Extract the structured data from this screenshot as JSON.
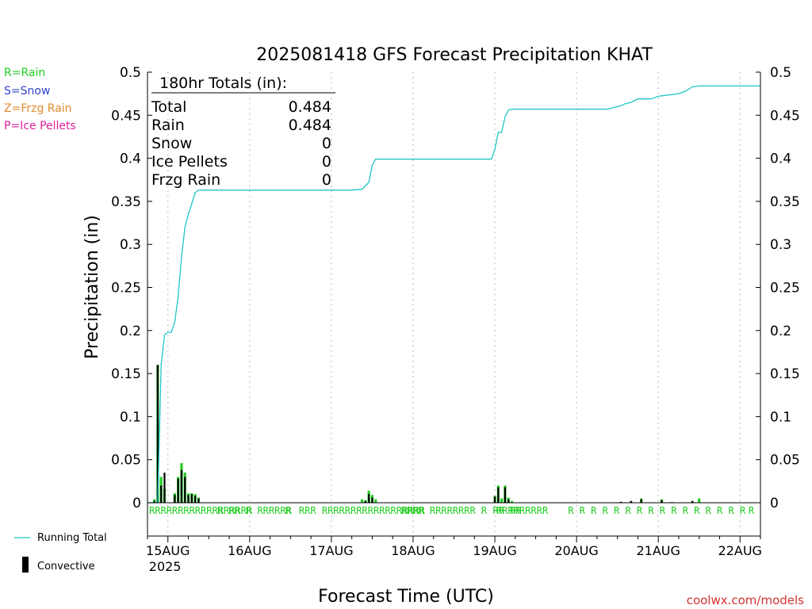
{
  "title": "2025081418 GFS Forecast Precipitation KHAT",
  "ylabel": "Precipitation (in)",
  "xlabel": "Forecast Time (UTC)",
  "credit": "coolwx.com/models",
  "legend_left": [
    {
      "label": "R=Rain",
      "color": "#22cc22"
    },
    {
      "label": "S=Snow",
      "color": "#3344cc"
    },
    {
      "label": "Z=Frzg Rain",
      "color": "#e08a2e"
    },
    {
      "label": "P=Ice Pellets",
      "color": "#e0209a"
    }
  ],
  "legend_bottom": {
    "running_total": "Running Total",
    "convective": "Convective"
  },
  "totals": {
    "header": "180hr Totals (in):",
    "rows": [
      {
        "label": "Total",
        "value": "0.484"
      },
      {
        "label": "Rain",
        "value": "0.484"
      },
      {
        "label": "Snow",
        "value": "0"
      },
      {
        "label": "Ice Pellets",
        "value": "0"
      },
      {
        "label": "Frzg Rain",
        "value": "0"
      }
    ]
  },
  "chart_data": {
    "type": "bar",
    "title": "2025081418 GFS Forecast Precipitation KHAT",
    "xlabel": "Forecast Time (UTC)",
    "ylabel": "Precipitation (in)",
    "ylim": [
      0,
      0.5
    ],
    "yticks": [
      0,
      0.05,
      0.1,
      0.15,
      0.2,
      0.25,
      0.3,
      0.35,
      0.4,
      0.45,
      0.5
    ],
    "ytick_labels": [
      "0",
      "0.05",
      "0.1",
      "0.15",
      "0.2",
      "0.25",
      "0.3",
      "0.35",
      "0.4",
      "0.45",
      "0.5"
    ],
    "x_axis": {
      "unit": "forecast hour",
      "range_hours": [
        0,
        180
      ],
      "grid": "dotted vertical at 00Z"
    },
    "date_ticks": [
      {
        "label": "15AUG",
        "sub": "2025",
        "hour": 6
      },
      {
        "label": "16AUG",
        "hour": 30
      },
      {
        "label": "17AUG",
        "hour": 54
      },
      {
        "label": "18AUG",
        "hour": 78
      },
      {
        "label": "19AUG",
        "hour": 102
      },
      {
        "label": "20AUG",
        "hour": 126
      },
      {
        "label": "21AUG",
        "hour": 150
      },
      {
        "label": "22AUG",
        "hour": 174
      }
    ],
    "series": [
      {
        "name": "Running Total",
        "type": "line",
        "color": "#1fc6c6",
        "points": [
          [
            0,
            0
          ],
          [
            1,
            0
          ],
          [
            2,
            0
          ],
          [
            3,
            0
          ],
          [
            4,
            0.16
          ],
          [
            5,
            0.195
          ],
          [
            6,
            0.198
          ],
          [
            7,
            0.198
          ],
          [
            8,
            0.21
          ],
          [
            9,
            0.24
          ],
          [
            10,
            0.285
          ],
          [
            11,
            0.32
          ],
          [
            12,
            0.335
          ],
          [
            13,
            0.347
          ],
          [
            14,
            0.36
          ],
          [
            15,
            0.363
          ],
          [
            30,
            0.363
          ],
          [
            60,
            0.363
          ],
          [
            63,
            0.364
          ],
          [
            65,
            0.372
          ],
          [
            66,
            0.392
          ],
          [
            67,
            0.399
          ],
          [
            90,
            0.399
          ],
          [
            101,
            0.399
          ],
          [
            102,
            0.41
          ],
          [
            103,
            0.43
          ],
          [
            104,
            0.43
          ],
          [
            105,
            0.448
          ],
          [
            106,
            0.456
          ],
          [
            107,
            0.457
          ],
          [
            135,
            0.457
          ],
          [
            137,
            0.459
          ],
          [
            139,
            0.461
          ],
          [
            140,
            0.463
          ],
          [
            142,
            0.465
          ],
          [
            144,
            0.469
          ],
          [
            148,
            0.469
          ],
          [
            150,
            0.472
          ],
          [
            152,
            0.473
          ],
          [
            154,
            0.474
          ],
          [
            156,
            0.475
          ],
          [
            158,
            0.478
          ],
          [
            160,
            0.483
          ],
          [
            162,
            0.484
          ],
          [
            180,
            0.484
          ]
        ]
      },
      {
        "name": "Precipitation",
        "type": "bar",
        "color": "#22cc22",
        "points": [
          [
            2,
            0.004
          ],
          [
            3,
            0.16
          ],
          [
            4,
            0.03
          ],
          [
            5,
            0.016
          ],
          [
            8,
            0.011
          ],
          [
            9,
            0.03
          ],
          [
            10,
            0.046
          ],
          [
            11,
            0.035
          ],
          [
            12,
            0.011
          ],
          [
            13,
            0.011
          ],
          [
            14,
            0.01
          ],
          [
            15,
            0.006
          ],
          [
            63,
            0.004
          ],
          [
            64,
            0.003
          ],
          [
            65,
            0.014
          ],
          [
            66,
            0.009
          ],
          [
            67,
            0.004
          ],
          [
            102,
            0.008
          ],
          [
            103,
            0.02
          ],
          [
            104,
            0.005
          ],
          [
            105,
            0.02
          ],
          [
            106,
            0.006
          ],
          [
            107,
            0.002
          ],
          [
            139,
            0.001
          ],
          [
            142,
            0.002
          ],
          [
            145,
            0.005
          ],
          [
            151,
            0.004
          ],
          [
            154,
            0.001
          ],
          [
            160,
            0.002
          ],
          [
            162,
            0.005
          ]
        ]
      },
      {
        "name": "Convective",
        "type": "bar",
        "color": "#000000",
        "points": [
          [
            2,
            0.002
          ],
          [
            3,
            0.16
          ],
          [
            4,
            0.02
          ],
          [
            5,
            0.035
          ],
          [
            8,
            0.009
          ],
          [
            9,
            0.028
          ],
          [
            10,
            0.038
          ],
          [
            11,
            0.03
          ],
          [
            12,
            0.009
          ],
          [
            13,
            0.01
          ],
          [
            14,
            0.008
          ],
          [
            15,
            0.005
          ],
          [
            64,
            0.002
          ],
          [
            65,
            0.01
          ],
          [
            66,
            0.006
          ],
          [
            102,
            0.007
          ],
          [
            103,
            0.018
          ],
          [
            105,
            0.018
          ],
          [
            106,
            0.004
          ],
          [
            139,
            0.001
          ],
          [
            142,
            0.002
          ],
          [
            145,
            0.004
          ],
          [
            151,
            0.003
          ],
          [
            160,
            0.002
          ]
        ]
      }
    ],
    "ptype_rows": [
      {
        "text": "RRRRRRRRRRRRRRRRRR",
        "hour": 0
      },
      {
        "text": "R RR R RRRRRR",
        "hour": 20
      },
      {
        "text": "R",
        "hour": 40
      },
      {
        "text": "RRR RRRRRRRRRRRRRRRRRR",
        "hour": 44
      },
      {
        "text": "RRRR RRRRRRRR R RR RR",
        "hour": 74
      },
      {
        "text": "RRRRRRRRR",
        "hour": 102
      },
      {
        "text": "R R R R R R R R R R R R R R R R",
        "hour": 123
      },
      {
        "text": "R",
        "hour": 176
      }
    ]
  }
}
